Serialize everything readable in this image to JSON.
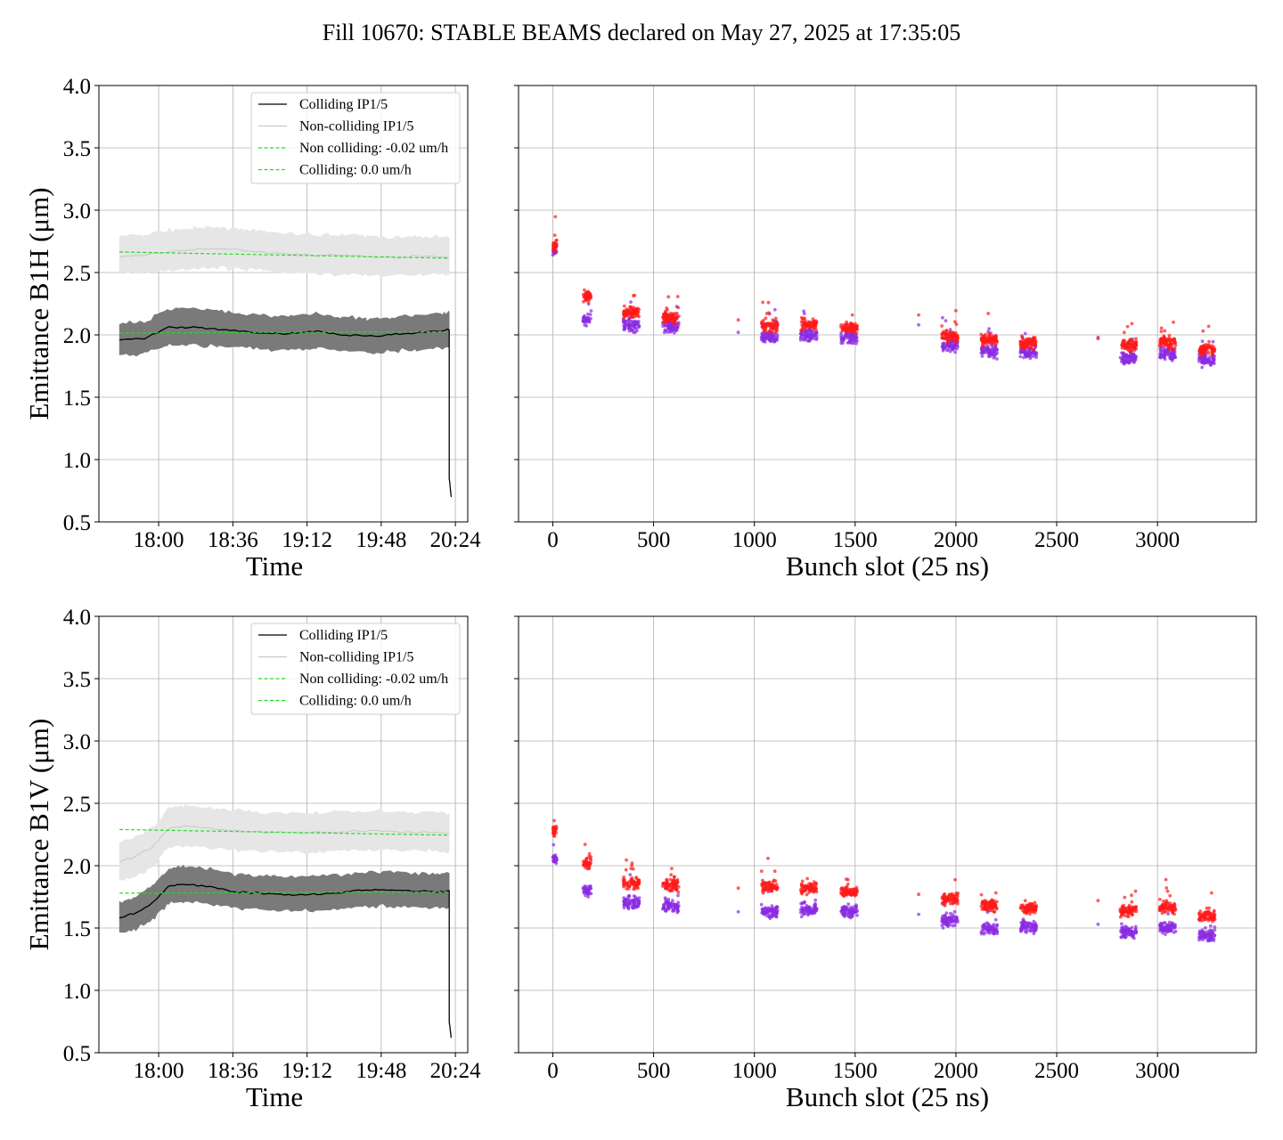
{
  "figure": {
    "title": "Fill 10670: STABLE BEAMS declared on May 27, 2025 at 17:35:05"
  },
  "colors": {
    "colliding": "#000000",
    "colliding_band": "#7a7a7a",
    "noncolliding": "#c8c8c8",
    "noncolliding_band": "#e6e6e6",
    "fit": "#22dd22",
    "scatter_red": "#ff1a1a",
    "scatter_purple": "#8a2be2"
  },
  "chart_data": [
    {
      "id": "time-b1h",
      "type": "line",
      "xlabel": "Time",
      "ylabel": "Emittance B1H (μm)",
      "ylim": [
        0.5,
        4.0
      ],
      "yticks": [
        "0.5",
        "1.0",
        "1.5",
        "2.0",
        "2.5",
        "3.0",
        "3.5",
        "4.0"
      ],
      "xticks": [
        "18:00",
        "18:36",
        "19:12",
        "19:48",
        "20:24"
      ],
      "legend_position": "upper-right",
      "legend": [
        "Colliding IP1/5",
        "Non-colliding IP1/5",
        "Non colliding: -0.02 um/h",
        "Colliding: 0.0 um/h"
      ],
      "series": [
        {
          "name": "Colliding IP1/5",
          "x": [
            "17:41",
            "17:53",
            "18:05",
            "18:17",
            "18:29",
            "18:41",
            "18:53",
            "19:05",
            "19:17",
            "19:29",
            "19:41",
            "19:53",
            "20:05",
            "20:17",
            "20:21",
            "20:21",
            "20:22"
          ],
          "y": [
            1.96,
            1.97,
            2.06,
            2.06,
            2.04,
            2.03,
            2.01,
            2.01,
            2.03,
            2.0,
            1.99,
            2.0,
            2.02,
            2.03,
            2.04,
            0.85,
            0.7
          ],
          "band_lower": [
            1.84,
            1.85,
            1.92,
            1.92,
            1.91,
            1.9,
            1.88,
            1.88,
            1.9,
            1.87,
            1.86,
            1.87,
            1.88,
            1.89,
            1.9
          ],
          "band_upper": [
            2.09,
            2.1,
            2.21,
            2.21,
            2.19,
            2.17,
            2.15,
            2.15,
            2.17,
            2.14,
            2.13,
            2.14,
            2.16,
            2.17,
            2.18
          ]
        },
        {
          "name": "Non-colliding IP1/5",
          "x": [
            "17:41",
            "17:53",
            "18:05",
            "18:17",
            "18:29",
            "18:41",
            "18:53",
            "19:05",
            "19:17",
            "19:29",
            "19:41",
            "19:53",
            "20:05",
            "20:17",
            "20:21"
          ],
          "y": [
            2.63,
            2.64,
            2.67,
            2.68,
            2.69,
            2.68,
            2.66,
            2.65,
            2.64,
            2.64,
            2.63,
            2.62,
            2.63,
            2.63,
            2.62
          ],
          "band_lower": [
            2.5,
            2.5,
            2.52,
            2.53,
            2.54,
            2.53,
            2.51,
            2.5,
            2.49,
            2.49,
            2.48,
            2.48,
            2.48,
            2.49,
            2.48
          ],
          "band_upper": [
            2.79,
            2.8,
            2.84,
            2.85,
            2.86,
            2.85,
            2.82,
            2.81,
            2.8,
            2.8,
            2.79,
            2.78,
            2.78,
            2.79,
            2.78
          ]
        },
        {
          "name": "Non colliding: -0.02 um/h",
          "x": [
            "17:41",
            "20:21"
          ],
          "y": [
            2.665,
            2.615
          ]
        },
        {
          "name": "Colliding: 0.0 um/h",
          "x": [
            "17:41",
            "20:21"
          ],
          "y": [
            2.015,
            2.025
          ]
        }
      ]
    },
    {
      "id": "bunch-b1h",
      "type": "scatter",
      "xlabel": "Bunch slot (25 ns)",
      "ylabel": "",
      "xlim": [
        -170,
        3490
      ],
      "ylim": [
        0.5,
        4.0
      ],
      "xticks": [
        "0",
        "500",
        "1000",
        "1500",
        "2000",
        "2500",
        "3000"
      ],
      "trains": [
        {
          "start": 0,
          "end": 20,
          "red": 2.72,
          "purple": 2.68
        },
        {
          "start": 150,
          "end": 190,
          "red": 2.3,
          "purple": 2.12
        },
        {
          "start": 350,
          "end": 430,
          "red": 2.18,
          "purple": 2.08
        },
        {
          "start": 545,
          "end": 625,
          "red": 2.14,
          "purple": 2.07
        },
        {
          "start": 1035,
          "end": 1115,
          "red": 2.07,
          "purple": 1.98
        },
        {
          "start": 1230,
          "end": 1310,
          "red": 2.08,
          "purple": 2.0
        },
        {
          "start": 1430,
          "end": 1510,
          "red": 2.06,
          "purple": 1.98
        },
        {
          "start": 1930,
          "end": 2010,
          "red": 1.99,
          "purple": 1.92
        },
        {
          "start": 2125,
          "end": 2205,
          "red": 1.96,
          "purple": 1.87
        },
        {
          "start": 2320,
          "end": 2400,
          "red": 1.94,
          "purple": 1.86
        },
        {
          "start": 2815,
          "end": 2895,
          "red": 1.92,
          "purple": 1.82
        },
        {
          "start": 3010,
          "end": 3090,
          "red": 1.94,
          "purple": 1.85
        },
        {
          "start": 3205,
          "end": 3285,
          "red": 1.88,
          "purple": 1.8
        }
      ],
      "singles": [
        {
          "x": 920,
          "red": 2.12,
          "purple": 2.02
        },
        {
          "x": 1815,
          "red": 2.16,
          "purple": 2.08
        },
        {
          "x": 2705,
          "red": 1.98,
          "purple": 1.97
        }
      ]
    },
    {
      "id": "time-b1v",
      "type": "line",
      "xlabel": "Time",
      "ylabel": "Emittance B1V (μm)",
      "ylim": [
        0.5,
        4.0
      ],
      "yticks": [
        "0.5",
        "1.0",
        "1.5",
        "2.0",
        "2.5",
        "3.0",
        "3.5",
        "4.0"
      ],
      "xticks": [
        "18:00",
        "18:36",
        "19:12",
        "19:48",
        "20:24"
      ],
      "legend_position": "upper-right",
      "legend": [
        "Colliding IP1/5",
        "Non-colliding IP1/5",
        "Non colliding: -0.02 um/h",
        "Colliding: 0.0 um/h"
      ],
      "series": [
        {
          "name": "Colliding IP1/5",
          "x": [
            "17:41",
            "17:49",
            "17:57",
            "18:05",
            "18:13",
            "18:25",
            "18:37",
            "18:49",
            "19:01",
            "19:13",
            "19:25",
            "19:37",
            "19:49",
            "20:01",
            "20:13",
            "20:21",
            "20:21",
            "20:22"
          ],
          "y": [
            1.58,
            1.62,
            1.7,
            1.84,
            1.85,
            1.83,
            1.79,
            1.78,
            1.77,
            1.77,
            1.78,
            1.8,
            1.81,
            1.8,
            1.79,
            1.8,
            0.75,
            0.62
          ],
          "band_lower": [
            1.46,
            1.49,
            1.57,
            1.7,
            1.71,
            1.69,
            1.66,
            1.65,
            1.64,
            1.64,
            1.65,
            1.67,
            1.68,
            1.67,
            1.66,
            1.67
          ],
          "band_upper": [
            1.71,
            1.75,
            1.84,
            1.98,
            1.99,
            1.97,
            1.93,
            1.92,
            1.91,
            1.91,
            1.92,
            1.94,
            1.95,
            1.94,
            1.93,
            1.94
          ]
        },
        {
          "name": "Non-colliding IP1/5",
          "x": [
            "17:41",
            "17:49",
            "17:57",
            "18:05",
            "18:13",
            "18:25",
            "18:37",
            "18:49",
            "19:01",
            "19:13",
            "19:25",
            "19:37",
            "19:49",
            "20:01",
            "20:13",
            "20:21"
          ],
          "y": [
            2.03,
            2.08,
            2.15,
            2.3,
            2.32,
            2.3,
            2.28,
            2.27,
            2.27,
            2.26,
            2.27,
            2.28,
            2.28,
            2.27,
            2.27,
            2.26
          ],
          "band_lower": [
            1.88,
            1.92,
            1.99,
            2.15,
            2.16,
            2.14,
            2.13,
            2.12,
            2.12,
            2.11,
            2.12,
            2.13,
            2.13,
            2.12,
            2.12,
            2.11
          ],
          "band_upper": [
            2.18,
            2.23,
            2.31,
            2.46,
            2.48,
            2.46,
            2.44,
            2.43,
            2.42,
            2.42,
            2.43,
            2.44,
            2.44,
            2.43,
            2.43,
            2.42
          ]
        },
        {
          "name": "Non colliding: -0.02 um/h",
          "x": [
            "17:41",
            "20:21"
          ],
          "y": [
            2.29,
            2.245
          ]
        },
        {
          "name": "Colliding: 0.0 um/h",
          "x": [
            "17:41",
            "20:21"
          ],
          "y": [
            1.78,
            1.79
          ]
        }
      ]
    },
    {
      "id": "bunch-b1v",
      "type": "scatter",
      "xlabel": "Bunch slot (25 ns)",
      "ylabel": "",
      "xlim": [
        -170,
        3490
      ],
      "ylim": [
        0.5,
        4.0
      ],
      "xticks": [
        "0",
        "500",
        "1000",
        "1500",
        "2000",
        "2500",
        "3000"
      ],
      "trains": [
        {
          "start": 0,
          "end": 20,
          "red": 2.28,
          "purple": 2.05
        },
        {
          "start": 150,
          "end": 190,
          "red": 2.02,
          "purple": 1.8
        },
        {
          "start": 350,
          "end": 430,
          "red": 1.86,
          "purple": 1.7
        },
        {
          "start": 545,
          "end": 625,
          "red": 1.84,
          "purple": 1.68
        },
        {
          "start": 1035,
          "end": 1115,
          "red": 1.83,
          "purple": 1.63
        },
        {
          "start": 1230,
          "end": 1310,
          "red": 1.82,
          "purple": 1.65
        },
        {
          "start": 1430,
          "end": 1510,
          "red": 1.79,
          "purple": 1.63
        },
        {
          "start": 1930,
          "end": 2010,
          "red": 1.73,
          "purple": 1.56
        },
        {
          "start": 2125,
          "end": 2205,
          "red": 1.68,
          "purple": 1.5
        },
        {
          "start": 2320,
          "end": 2400,
          "red": 1.66,
          "purple": 1.51
        },
        {
          "start": 2815,
          "end": 2895,
          "red": 1.64,
          "purple": 1.47
        },
        {
          "start": 3010,
          "end": 3090,
          "red": 1.67,
          "purple": 1.5
        },
        {
          "start": 3205,
          "end": 3285,
          "red": 1.6,
          "purple": 1.45
        }
      ],
      "singles": [
        {
          "x": 920,
          "red": 1.82,
          "purple": 1.63
        },
        {
          "x": 1815,
          "red": 1.77,
          "purple": 1.61
        },
        {
          "x": 2705,
          "red": 1.72,
          "purple": 1.53
        }
      ]
    }
  ]
}
